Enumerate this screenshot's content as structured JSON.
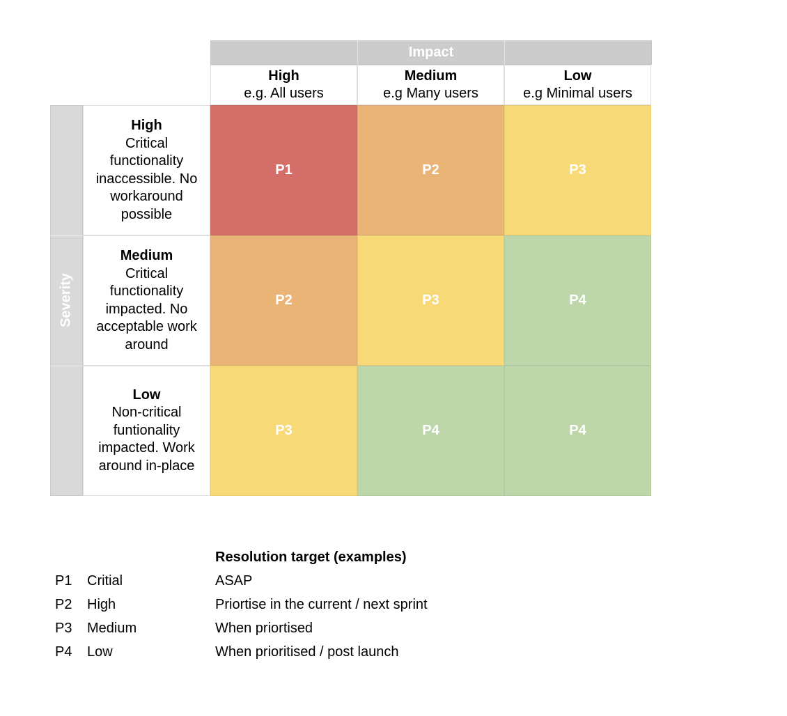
{
  "impact": {
    "label": "Impact",
    "columns": [
      {
        "title": "High",
        "subtitle": "e.g. All users"
      },
      {
        "title": "Medium",
        "subtitle": "e.g Many users"
      },
      {
        "title": "Low",
        "subtitle": "e.g Minimal users"
      }
    ]
  },
  "severity": {
    "label": "Severity",
    "rows": [
      {
        "title": "High",
        "description": "Critical functionality inaccessible. No workaround possible"
      },
      {
        "title": "Medium",
        "description": "Critical functionality impacted. No acceptable work around"
      },
      {
        "title": "Low",
        "description": "Non-critical funtionality impacted. Work around in-place"
      }
    ]
  },
  "matrix": [
    [
      {
        "label": "P1",
        "color": "#d46e69"
      },
      {
        "label": "P2",
        "color": "#ebb477"
      },
      {
        "label": "P3",
        "color": "#f8d977"
      }
    ],
    [
      {
        "label": "P2",
        "color": "#ebb477"
      },
      {
        "label": "P3",
        "color": "#f8d977"
      },
      {
        "label": "P4",
        "color": "#bdd7ab"
      }
    ],
    [
      {
        "label": "P3",
        "color": "#f8d977"
      },
      {
        "label": "P4",
        "color": "#bdd7ab"
      },
      {
        "label": "P4",
        "color": "#bdd7ab"
      }
    ]
  ],
  "legend": {
    "resolution_header": "Resolution target (examples)",
    "items": [
      {
        "code": "P1",
        "name": "Critial",
        "target": "ASAP"
      },
      {
        "code": "P2",
        "name": "High",
        "target": "Priortise in the current / next sprint"
      },
      {
        "code": "P3",
        "name": "Medium",
        "target": "When priortised"
      },
      {
        "code": "P4",
        "name": "Low",
        "target": "When prioritised / post launch"
      }
    ]
  }
}
